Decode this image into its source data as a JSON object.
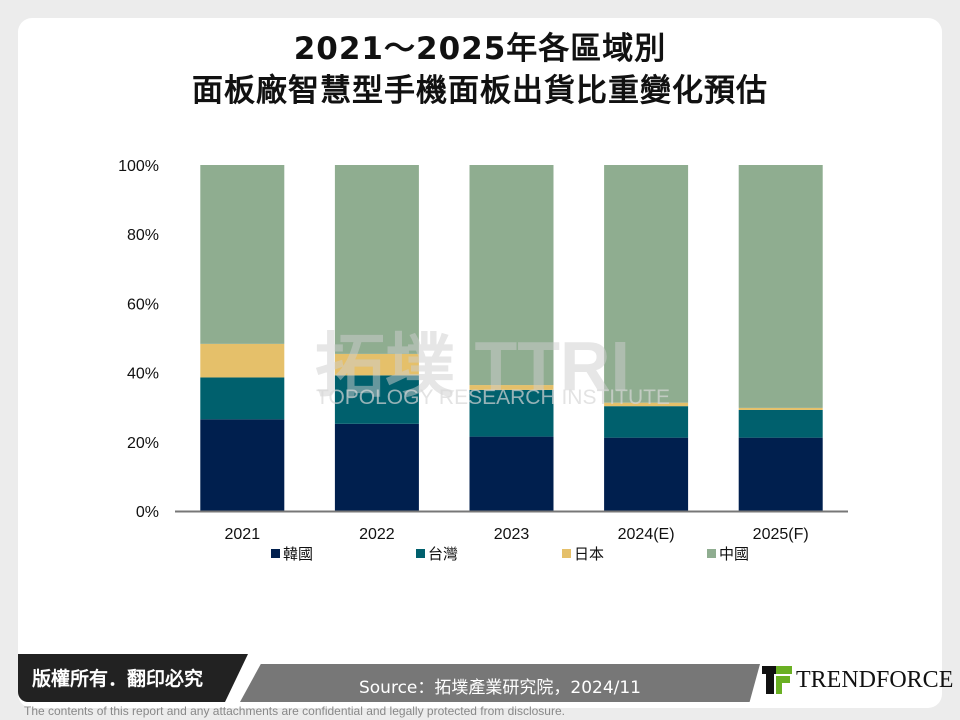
{
  "title_line1": "2021～2025年各區域別",
  "title_line2": "面板廠智慧型手機面板出貨比重變化預估",
  "chart_data": {
    "type": "bar",
    "stacked": true,
    "categories": [
      "2021",
      "2022",
      "2023",
      "2024(E)",
      "2025(F)"
    ],
    "series": [
      {
        "name": "韓國",
        "color": "#001f4e",
        "values": [
          26.5,
          25.2,
          21.5,
          21.2,
          21.2
        ]
      },
      {
        "name": "台灣",
        "color": "#00606d",
        "values": [
          12.1,
          14.0,
          13.5,
          9.1,
          8.0
        ]
      },
      {
        "name": "日本",
        "color": "#e5c06a",
        "values": [
          9.7,
          6.2,
          1.4,
          1.0,
          0.6
        ]
      },
      {
        "name": "中國",
        "color": "#8fad90",
        "values": [
          51.7,
          54.6,
          63.6,
          68.7,
          70.2
        ]
      }
    ],
    "ylim": [
      0,
      100
    ],
    "yticks": [
      "0%",
      "20%",
      "40%",
      "60%",
      "80%",
      "100%"
    ],
    "grid": false,
    "legend": "bottom"
  },
  "watermark": {
    "cn": "拓墣",
    "en": "TOPOLOGY RESEARCH INSTITUTE"
  },
  "footer": {
    "copyright": "版權所有．翻印必究",
    "source": "Source：拓墣產業研究院，2024/11",
    "logo": "TRENDFORCE",
    "disclaimer": "The contents of this report and any attachments are confidential and legally protected from disclosure."
  }
}
